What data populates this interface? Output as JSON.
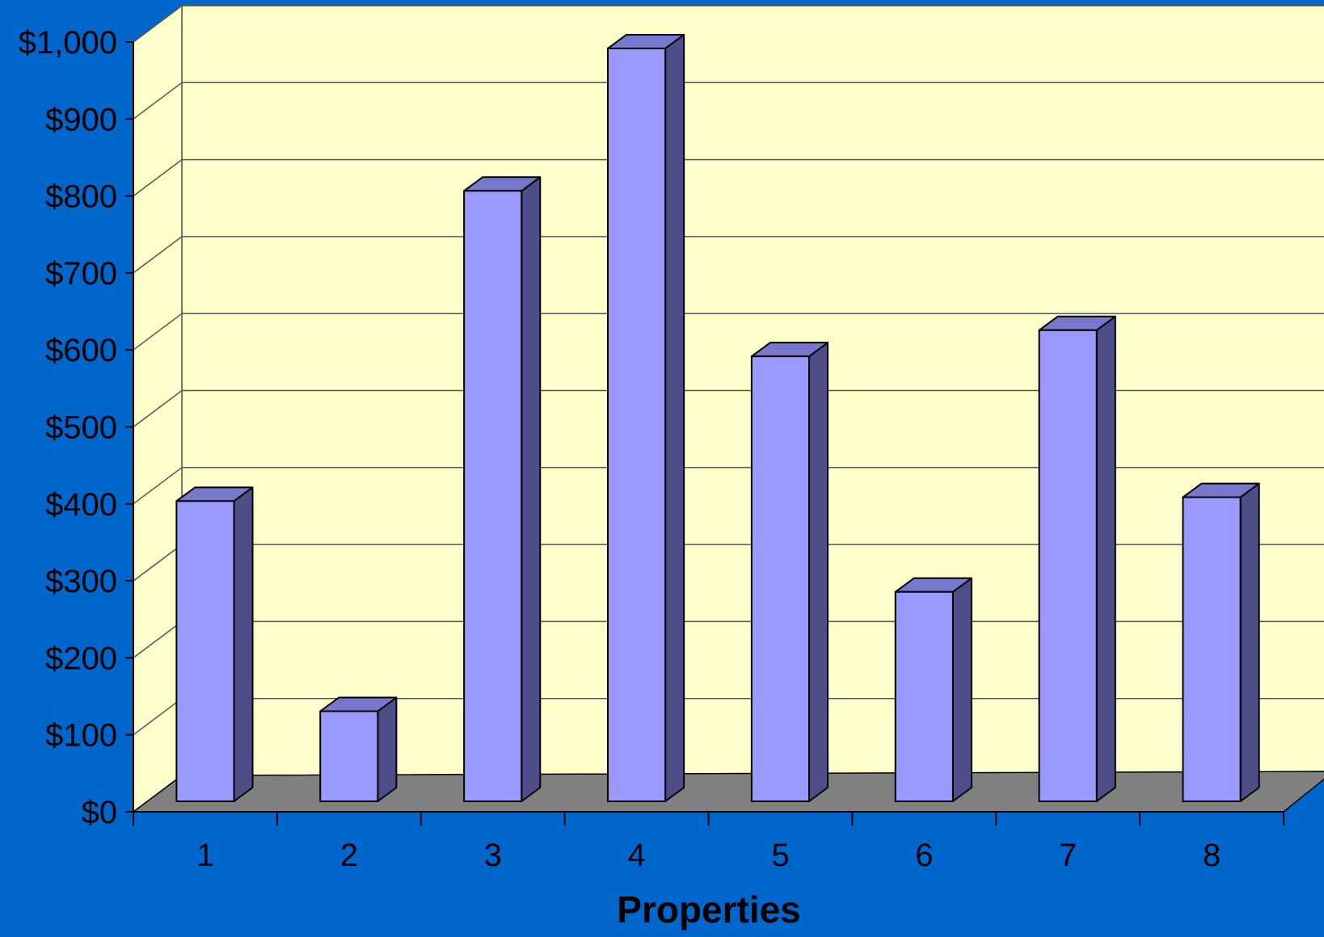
{
  "chart_data": {
    "type": "bar",
    "style": "3d-column",
    "categories": [
      "1",
      "2",
      "3",
      "4",
      "5",
      "6",
      "7",
      "8"
    ],
    "values": [
      390,
      117,
      793,
      978,
      578,
      272,
      612,
      395
    ],
    "xlabel": "Properties",
    "ylabel": "",
    "ylim": [
      0,
      1000
    ],
    "yticks": [
      0,
      100,
      200,
      300,
      400,
      500,
      600,
      700,
      800,
      900,
      1000
    ],
    "ytick_labels": [
      "$0",
      "$100",
      "$200",
      "$300",
      "$400",
      "$500",
      "$600",
      "$700",
      "$800",
      "$900",
      "$1,000"
    ],
    "grid": true,
    "legend": "none"
  },
  "colors": {
    "background": "#0066cc",
    "plot_wall": "#ffffcc",
    "floor": "#808080",
    "bar_front": "#9999ff",
    "bar_top": "#7777cc",
    "bar_side": "#4d4d88",
    "grid": "#555555",
    "axis": "#000000"
  }
}
